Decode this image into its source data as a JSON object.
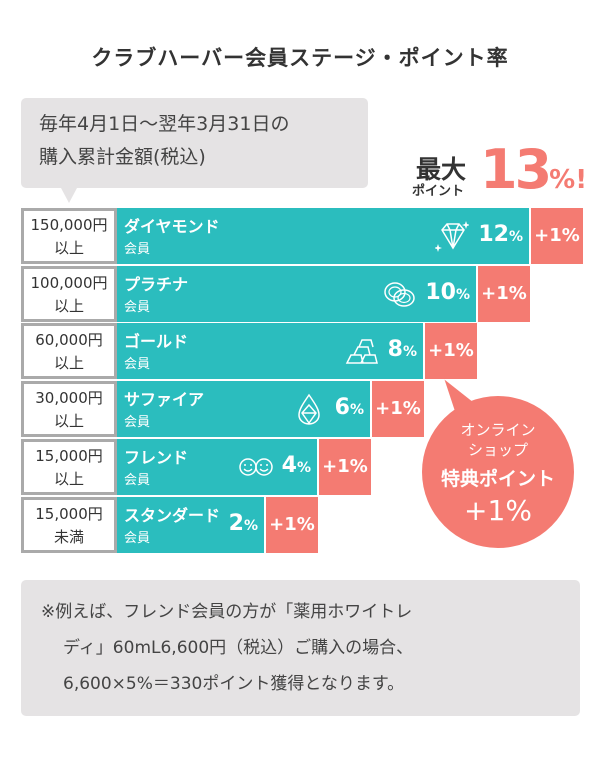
{
  "title": "クラブハーバー会員ステージ・ポイント率",
  "callout": {
    "line1": "毎年4月1日〜翌年3月31日の",
    "line2": "購入累計金額(税込)"
  },
  "max": {
    "label1": "最大",
    "label2": "ポイント",
    "value": "13",
    "unit": "%!"
  },
  "colors": {
    "teal": "#2bbdbe",
    "coral": "#f47b72",
    "note_bg": "#e5e3e4"
  },
  "stages": [
    {
      "cond1": "150,000円",
      "cond2": "以上",
      "name": "ダイヤモンド",
      "sub": "会員",
      "rate": "12",
      "unit": "%",
      "bonus": "+1%",
      "icon": "diamond-icon",
      "rate_value": 12
    },
    {
      "cond1": "100,000円",
      "cond2": "以上",
      "name": "プラチナ",
      "sub": "会員",
      "rate": "10",
      "unit": "%",
      "bonus": "+1%",
      "icon": "rings-icon",
      "rate_value": 10
    },
    {
      "cond1": "60,000円",
      "cond2": "以上",
      "name": "ゴールド",
      "sub": "会員",
      "rate": "8",
      "unit": "%",
      "bonus": "+1%",
      "icon": "gold-bars-icon",
      "rate_value": 8
    },
    {
      "cond1": "30,000円",
      "cond2": "以上",
      "name": "サファイア",
      "sub": "会員",
      "rate": "6",
      "unit": "%",
      "bonus": "+1%",
      "icon": "sapphire-icon",
      "rate_value": 6
    },
    {
      "cond1": "15,000円",
      "cond2": "以上",
      "name": "フレンド",
      "sub": "会員",
      "rate": "4",
      "unit": "%",
      "bonus": "+1%",
      "icon": "smiley-faces-icon",
      "rate_value": 4
    },
    {
      "cond1": "15,000円",
      "cond2": "未満",
      "name": "スタンダード",
      "sub": "会員",
      "rate": "2",
      "unit": "%",
      "bonus": "+1%",
      "icon": "",
      "rate_value": 2
    }
  ],
  "bubble": {
    "line1": "オンライン",
    "line2": "ショップ",
    "line3": "特典ポイント",
    "line4": "+1%"
  },
  "note": {
    "line1": "※例えば、フレンド会員の方が「薬用ホワイトレ",
    "line2": "ディ」60mL6,600円（税込）ご購入の場合、",
    "line3": "6,600×5%＝330ポイント獲得となります。"
  }
}
